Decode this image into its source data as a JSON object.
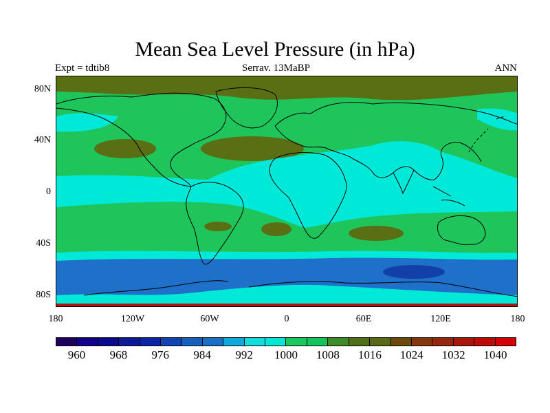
{
  "title": "Mean Sea Level Pressure (in hPa)",
  "subtitle": {
    "left": "Expt = tdtib8",
    "center": "Serrav.   13MaBP",
    "right": "ANN"
  },
  "y_labels": [
    "80N",
    "40N",
    "0",
    "40S",
    "80S"
  ],
  "x_labels": [
    "180",
    "120W",
    "60W",
    "0",
    "60E",
    "120E",
    "180"
  ],
  "colorbar": {
    "colors": [
      "#1f005c",
      "#10008a",
      "#0a0a8e",
      "#0c1a98",
      "#0a24a6",
      "#1044b4",
      "#1560bd",
      "#1a70c4",
      "#10a8d8",
      "#12dcdc",
      "#00e6d8",
      "#18c85c",
      "#12c45a",
      "#3c8c28",
      "#4e6e18",
      "#5a6a14",
      "#6e4a08",
      "#86380c",
      "#94280c",
      "#a81808",
      "#bc0c04",
      "#d40000"
    ],
    "labels": [
      "960",
      "968",
      "976",
      "984",
      "992",
      "1000",
      "1008",
      "1016",
      "1024",
      "1032",
      "1040"
    ]
  },
  "map_colors": {
    "deep_low": "#1f4fbf",
    "low": "#1f70c8",
    "cyan": "#00e8d8",
    "green": "#1fc55a",
    "olive": "#5a6e14",
    "dark_low": "#1240a8",
    "polar_high": "#b21414"
  }
}
